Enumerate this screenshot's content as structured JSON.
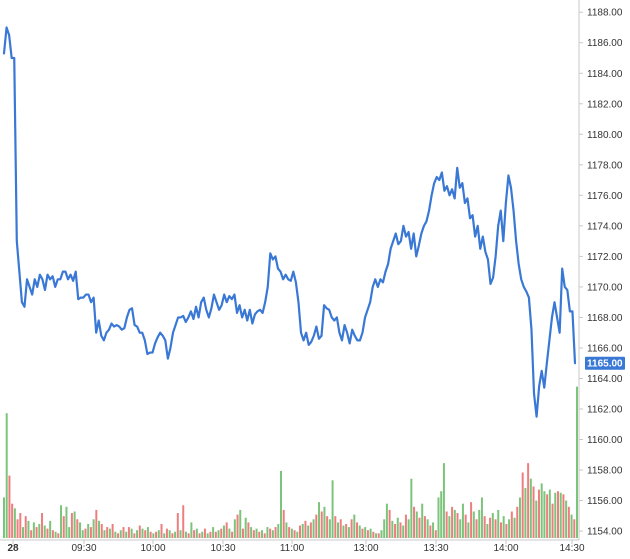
{
  "colors": {
    "line": "#3a78d6",
    "vol_up": "#7cc47c",
    "vol_down": "#ee7e7e",
    "axis": "#c8c8c8",
    "text": "#333333",
    "last_price_bg": "#3a78d6"
  },
  "chart_data": {
    "type": "line",
    "title": "",
    "xlabel": "",
    "ylabel": "",
    "grid": false,
    "ylim": [
      1152.5,
      1188.8
    ],
    "y_ticks": [
      "1188.00",
      "1186.00",
      "1184.00",
      "1182.00",
      "1180.00",
      "1178.00",
      "1176.00",
      "1174.00",
      "1172.00",
      "1170.00",
      "1168.00",
      "1166.00",
      "1164.00",
      "1162.00",
      "1160.00",
      "1158.00",
      "1156.00",
      "1154.00"
    ],
    "x_ticks": [
      "28",
      "09:30",
      "10:00",
      "10:30",
      "11:00",
      "13:00",
      "13:30",
      "14:00",
      "14:30"
    ],
    "last_price": "1165.00",
    "series": [
      {
        "values": [
          1185.3,
          1187.0,
          1186.5,
          1185.0,
          1185.0,
          1173.0,
          1171.0,
          1169.0,
          1168.7,
          1170.5,
          1170.0,
          1169.5,
          1170.5,
          1170.0,
          1170.8,
          1170.5,
          1169.8,
          1170.8,
          1170.5,
          1170.7,
          1170.0,
          1170.5,
          1170.5,
          1171.0,
          1171.0,
          1170.5,
          1170.8,
          1170.4,
          1171.0,
          1169.2,
          1169.3,
          1169.3,
          1169.5,
          1169.5,
          1169.0,
          1169.3,
          1167.0,
          1167.8,
          1166.8,
          1166.5,
          1167.0,
          1167.2,
          1167.6,
          1167.4,
          1167.5,
          1167.4,
          1167.2,
          1167.3,
          1168.0,
          1168.5,
          1168.6,
          1167.5,
          1167.4,
          1167.0,
          1167.0,
          1166.5,
          1165.6,
          1165.7,
          1165.7,
          1166.3,
          1166.7,
          1167.0,
          1166.8,
          1166.5,
          1165.3,
          1166.0,
          1167.0,
          1167.5,
          1168.0,
          1168.0,
          1168.1,
          1167.7,
          1168.0,
          1168.4,
          1167.9,
          1168.7,
          1168.0,
          1169.0,
          1169.3,
          1168.5,
          1168.0,
          1168.6,
          1169.5,
          1169.0,
          1168.5,
          1168.8,
          1169.5,
          1169.0,
          1169.4,
          1169.2,
          1169.5,
          1168.3,
          1168.8,
          1168.0,
          1168.5,
          1167.8,
          1168.5,
          1167.6,
          1168.2,
          1168.4,
          1168.5,
          1168.3,
          1169.0,
          1170.0,
          1172.2,
          1171.8,
          1172.0,
          1171.2,
          1171.0,
          1170.5,
          1170.8,
          1170.5,
          1170.4,
          1171.0,
          1170.3,
          1169.0,
          1167.0,
          1166.5,
          1167.0,
          1166.2,
          1166.4,
          1166.8,
          1167.4,
          1166.6,
          1166.8,
          1168.8,
          1168.6,
          1168.5,
          1168.0,
          1167.8,
          1168.0,
          1167.0,
          1166.5,
          1167.5,
          1167.0,
          1166.3,
          1167.2,
          1166.8,
          1166.5,
          1166.5,
          1167.0,
          1168.0,
          1168.5,
          1169.0,
          1170.0,
          1170.5,
          1170.0,
          1170.5,
          1170.3,
          1171.0,
          1171.5,
          1172.5,
          1173.0,
          1173.5,
          1172.8,
          1173.0,
          1174.0,
          1173.3,
          1173.6,
          1172.5,
          1173.5,
          1172.0,
          1172.7,
          1173.5,
          1174.0,
          1174.3,
          1175.0,
          1176.0,
          1176.8,
          1177.2,
          1177.0,
          1177.5,
          1176.3,
          1176.6,
          1176.0,
          1176.4,
          1175.8,
          1177.8,
          1176.5,
          1176.8,
          1175.5,
          1175.8,
          1174.5,
          1174.7,
          1173.3,
          1174.0,
          1172.5,
          1173.3,
          1172.3,
          1171.8,
          1170.2,
          1170.6,
          1172.0,
          1174.0,
          1175.0,
          1173.0,
          1175.5,
          1177.3,
          1176.5,
          1175.0,
          1173.0,
          1171.5,
          1170.5,
          1170.0,
          1169.7,
          1169.3,
          1167.2,
          1163.0,
          1161.5,
          1163.5,
          1164.5,
          1163.4,
          1165.0,
          1166.5,
          1168.0,
          1169.0,
          1168.0,
          1167.0,
          1171.2,
          1170.0,
          1169.8,
          1168.4,
          1168.4,
          1165.0
        ]
      }
    ],
    "volume": [
      {
        "v": 0.26,
        "up": true
      },
      {
        "v": 0.8,
        "up": true
      },
      {
        "v": 0.4,
        "up": false
      },
      {
        "v": 0.22,
        "up": false
      },
      {
        "v": 0.19,
        "up": true
      },
      {
        "v": 0.12,
        "up": false
      },
      {
        "v": 0.16,
        "up": false
      },
      {
        "v": 0.07,
        "up": true
      },
      {
        "v": 0.14,
        "up": false
      },
      {
        "v": 0.11,
        "up": true
      },
      {
        "v": 0.05,
        "up": false
      },
      {
        "v": 0.1,
        "up": true
      },
      {
        "v": 0.07,
        "up": false
      },
      {
        "v": 0.09,
        "up": true
      },
      {
        "v": 0.16,
        "up": false
      },
      {
        "v": 0.08,
        "up": true
      },
      {
        "v": 0.06,
        "up": false
      },
      {
        "v": 0.11,
        "up": true
      },
      {
        "v": 0.05,
        "up": false
      },
      {
        "v": 0.04,
        "up": true
      },
      {
        "v": 0.03,
        "up": false
      },
      {
        "v": 0.21,
        "up": true
      },
      {
        "v": 0.14,
        "up": false
      },
      {
        "v": 0.2,
        "up": true
      },
      {
        "v": 0.07,
        "up": true
      },
      {
        "v": 0.16,
        "up": false
      },
      {
        "v": 0.17,
        "up": true
      },
      {
        "v": 0.12,
        "up": false
      },
      {
        "v": 0.1,
        "up": true
      },
      {
        "v": 0.05,
        "up": true
      },
      {
        "v": 0.06,
        "up": false
      },
      {
        "v": 0.09,
        "up": true
      },
      {
        "v": 0.07,
        "up": false
      },
      {
        "v": 0.12,
        "up": true
      },
      {
        "v": 0.18,
        "up": false
      },
      {
        "v": 0.11,
        "up": true
      },
      {
        "v": 0.09,
        "up": false
      },
      {
        "v": 0.05,
        "up": true
      },
      {
        "v": 0.07,
        "up": false
      },
      {
        "v": 0.06,
        "up": true
      },
      {
        "v": 0.09,
        "up": false
      },
      {
        "v": 0.04,
        "up": true
      },
      {
        "v": 0.03,
        "up": false
      },
      {
        "v": 0.05,
        "up": true
      },
      {
        "v": 0.07,
        "up": false
      },
      {
        "v": 0.04,
        "up": true
      },
      {
        "v": 0.07,
        "up": false
      },
      {
        "v": 0.06,
        "up": true
      },
      {
        "v": 0.03,
        "up": false
      },
      {
        "v": 0.05,
        "up": true
      },
      {
        "v": 0.08,
        "up": false
      },
      {
        "v": 0.06,
        "up": true
      },
      {
        "v": 0.05,
        "up": false
      },
      {
        "v": 0.07,
        "up": true
      },
      {
        "v": 0.04,
        "up": false
      },
      {
        "v": 0.03,
        "up": true
      },
      {
        "v": 0.04,
        "up": false
      },
      {
        "v": 0.05,
        "up": true
      },
      {
        "v": 0.09,
        "up": false
      },
      {
        "v": 0.03,
        "up": true
      },
      {
        "v": 0.06,
        "up": false
      },
      {
        "v": 0.05,
        "up": true
      },
      {
        "v": 0.03,
        "up": false
      },
      {
        "v": 0.04,
        "up": true
      },
      {
        "v": 0.16,
        "up": false
      },
      {
        "v": 0.05,
        "up": true
      },
      {
        "v": 0.21,
        "up": false
      },
      {
        "v": 0.04,
        "up": true
      },
      {
        "v": 0.03,
        "up": false
      },
      {
        "v": 0.1,
        "up": true
      },
      {
        "v": 0.05,
        "up": false
      },
      {
        "v": 0.06,
        "up": true
      },
      {
        "v": 0.03,
        "up": false
      },
      {
        "v": 0.04,
        "up": true
      },
      {
        "v": 0.06,
        "up": false
      },
      {
        "v": 0.03,
        "up": true
      },
      {
        "v": 0.04,
        "up": false
      },
      {
        "v": 0.07,
        "up": true
      },
      {
        "v": 0.04,
        "up": false
      },
      {
        "v": 0.05,
        "up": true
      },
      {
        "v": 0.06,
        "up": false
      },
      {
        "v": 0.08,
        "up": true
      },
      {
        "v": 0.1,
        "up": false
      },
      {
        "v": 0.06,
        "up": true
      },
      {
        "v": 0.04,
        "up": false
      },
      {
        "v": 0.12,
        "up": true
      },
      {
        "v": 0.15,
        "up": false
      },
      {
        "v": 0.18,
        "up": true
      },
      {
        "v": 0.06,
        "up": false
      },
      {
        "v": 0.13,
        "up": true
      },
      {
        "v": 0.1,
        "up": false
      },
      {
        "v": 0.07,
        "up": true
      },
      {
        "v": 0.05,
        "up": false
      },
      {
        "v": 0.06,
        "up": true
      },
      {
        "v": 0.04,
        "up": false
      },
      {
        "v": 0.05,
        "up": true
      },
      {
        "v": 0.03,
        "up": false
      },
      {
        "v": 0.07,
        "up": true
      },
      {
        "v": 0.06,
        "up": false
      },
      {
        "v": 0.05,
        "up": true
      },
      {
        "v": 0.07,
        "up": false
      },
      {
        "v": 0.09,
        "up": true
      },
      {
        "v": 0.43,
        "up": true
      },
      {
        "v": 0.18,
        "up": false
      },
      {
        "v": 0.1,
        "up": true
      },
      {
        "v": 0.07,
        "up": false
      },
      {
        "v": 0.06,
        "up": true
      },
      {
        "v": 0.05,
        "up": false
      },
      {
        "v": 0.04,
        "up": true
      },
      {
        "v": 0.08,
        "up": false
      },
      {
        "v": 0.09,
        "up": true
      },
      {
        "v": 0.11,
        "up": false
      },
      {
        "v": 0.08,
        "up": true
      },
      {
        "v": 0.1,
        "up": false
      },
      {
        "v": 0.12,
        "up": true
      },
      {
        "v": 0.15,
        "up": false
      },
      {
        "v": 0.23,
        "up": true
      },
      {
        "v": 0.17,
        "up": false
      },
      {
        "v": 0.2,
        "up": true
      },
      {
        "v": 0.14,
        "up": false
      },
      {
        "v": 0.12,
        "up": true
      },
      {
        "v": 0.37,
        "up": true
      },
      {
        "v": 0.14,
        "up": false
      },
      {
        "v": 0.1,
        "up": true
      },
      {
        "v": 0.12,
        "up": false
      },
      {
        "v": 0.08,
        "up": true
      },
      {
        "v": 0.09,
        "up": false
      },
      {
        "v": 0.07,
        "up": true
      },
      {
        "v": 0.12,
        "up": false
      },
      {
        "v": 0.15,
        "up": true
      },
      {
        "v": 0.1,
        "up": false
      },
      {
        "v": 0.08,
        "up": true
      },
      {
        "v": 0.06,
        "up": false
      },
      {
        "v": 0.07,
        "up": true
      },
      {
        "v": 0.05,
        "up": false
      },
      {
        "v": 0.06,
        "up": true
      },
      {
        "v": 0.04,
        "up": false
      },
      {
        "v": 0.03,
        "up": true
      },
      {
        "v": 0.03,
        "up": false
      },
      {
        "v": 0.05,
        "up": true
      },
      {
        "v": 0.12,
        "up": true
      },
      {
        "v": 0.22,
        "up": true
      },
      {
        "v": 0.18,
        "up": false
      },
      {
        "v": 0.11,
        "up": true
      },
      {
        "v": 0.09,
        "up": false
      },
      {
        "v": 0.13,
        "up": true
      },
      {
        "v": 0.1,
        "up": false
      },
      {
        "v": 0.08,
        "up": true
      },
      {
        "v": 0.15,
        "up": false
      },
      {
        "v": 0.12,
        "up": true
      },
      {
        "v": 0.38,
        "up": true
      },
      {
        "v": 0.2,
        "up": false
      },
      {
        "v": 0.17,
        "up": true
      },
      {
        "v": 0.13,
        "up": false
      },
      {
        "v": 0.22,
        "up": true
      },
      {
        "v": 0.14,
        "up": false
      },
      {
        "v": 0.12,
        "up": true
      },
      {
        "v": 0.08,
        "up": false
      },
      {
        "v": 0.1,
        "up": true
      },
      {
        "v": 0.05,
        "up": false
      },
      {
        "v": 0.26,
        "up": true
      },
      {
        "v": 0.3,
        "up": true
      },
      {
        "v": 0.48,
        "up": true
      },
      {
        "v": 0.17,
        "up": false
      },
      {
        "v": 0.14,
        "up": true
      },
      {
        "v": 0.2,
        "up": false
      },
      {
        "v": 0.18,
        "up": true
      },
      {
        "v": 0.16,
        "up": false
      },
      {
        "v": 0.12,
        "up": true
      },
      {
        "v": 0.22,
        "up": true
      },
      {
        "v": 0.15,
        "up": false
      },
      {
        "v": 0.1,
        "up": true
      },
      {
        "v": 0.23,
        "up": false
      },
      {
        "v": 0.17,
        "up": true
      },
      {
        "v": 0.12,
        "up": false
      },
      {
        "v": 0.18,
        "up": true
      },
      {
        "v": 0.26,
        "up": true
      },
      {
        "v": 0.14,
        "up": false
      },
      {
        "v": 0.09,
        "up": true
      },
      {
        "v": 0.13,
        "up": false
      },
      {
        "v": 0.16,
        "up": true
      },
      {
        "v": 0.12,
        "up": false
      },
      {
        "v": 0.18,
        "up": true
      },
      {
        "v": 0.1,
        "up": false
      },
      {
        "v": 0.14,
        "up": true
      },
      {
        "v": 0.09,
        "up": false
      },
      {
        "v": 0.12,
        "up": true
      },
      {
        "v": 0.17,
        "up": false
      },
      {
        "v": 0.13,
        "up": true
      },
      {
        "v": 0.2,
        "up": false
      },
      {
        "v": 0.26,
        "up": true
      },
      {
        "v": 0.42,
        "up": false
      },
      {
        "v": 0.32,
        "up": true
      },
      {
        "v": 0.48,
        "up": false
      },
      {
        "v": 0.38,
        "up": true
      },
      {
        "v": 0.33,
        "up": false
      },
      {
        "v": 0.24,
        "up": true
      },
      {
        "v": 0.31,
        "up": false
      },
      {
        "v": 0.35,
        "up": true
      },
      {
        "v": 0.3,
        "up": true
      },
      {
        "v": 0.28,
        "up": false
      },
      {
        "v": 0.31,
        "up": true
      },
      {
        "v": 0.22,
        "up": false
      },
      {
        "v": 0.29,
        "up": true
      },
      {
        "v": 0.3,
        "up": false
      },
      {
        "v": 0.29,
        "up": true
      },
      {
        "v": 0.28,
        "up": false
      },
      {
        "v": 0.24,
        "up": true
      },
      {
        "v": 0.2,
        "up": false
      },
      {
        "v": 0.15,
        "up": true
      },
      {
        "v": 0.12,
        "up": false
      },
      {
        "v": 0.97,
        "up": true
      }
    ]
  }
}
